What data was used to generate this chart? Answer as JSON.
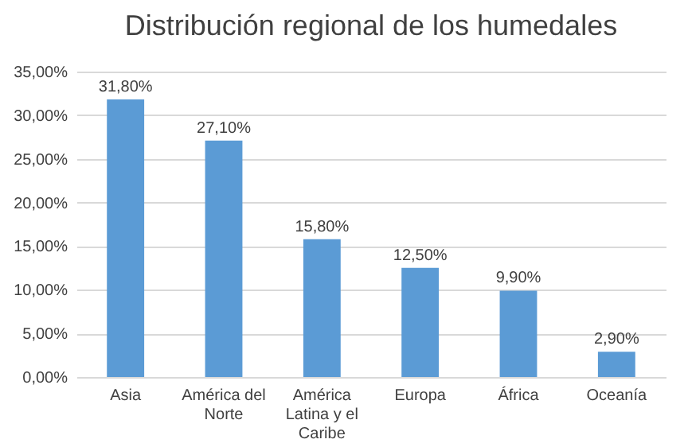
{
  "chart_data": {
    "type": "bar",
    "title": "Distribución regional de los humedales",
    "categories": [
      "Asia",
      "América del Norte",
      "América Latina y el Caribe",
      "Europa",
      "África",
      "Oceanía"
    ],
    "values": [
      31.8,
      27.1,
      15.8,
      12.5,
      9.9,
      2.9
    ],
    "value_labels": [
      "31,80%",
      "27,10%",
      "15,80%",
      "12,50%",
      "9,90%",
      "2,90%"
    ],
    "color": "#5b9bd5",
    "ylim": [
      0,
      35
    ],
    "yticks": [
      {
        "value": 0,
        "label": "0,00%"
      },
      {
        "value": 5,
        "label": "5,00%"
      },
      {
        "value": 10,
        "label": "10,00%"
      },
      {
        "value": 15,
        "label": "15,00%"
      },
      {
        "value": 20,
        "label": "20,00%"
      },
      {
        "value": 25,
        "label": "25,00%"
      },
      {
        "value": 30,
        "label": "30,00%"
      },
      {
        "value": 35,
        "label": "35,00%"
      }
    ],
    "grid": "y"
  }
}
